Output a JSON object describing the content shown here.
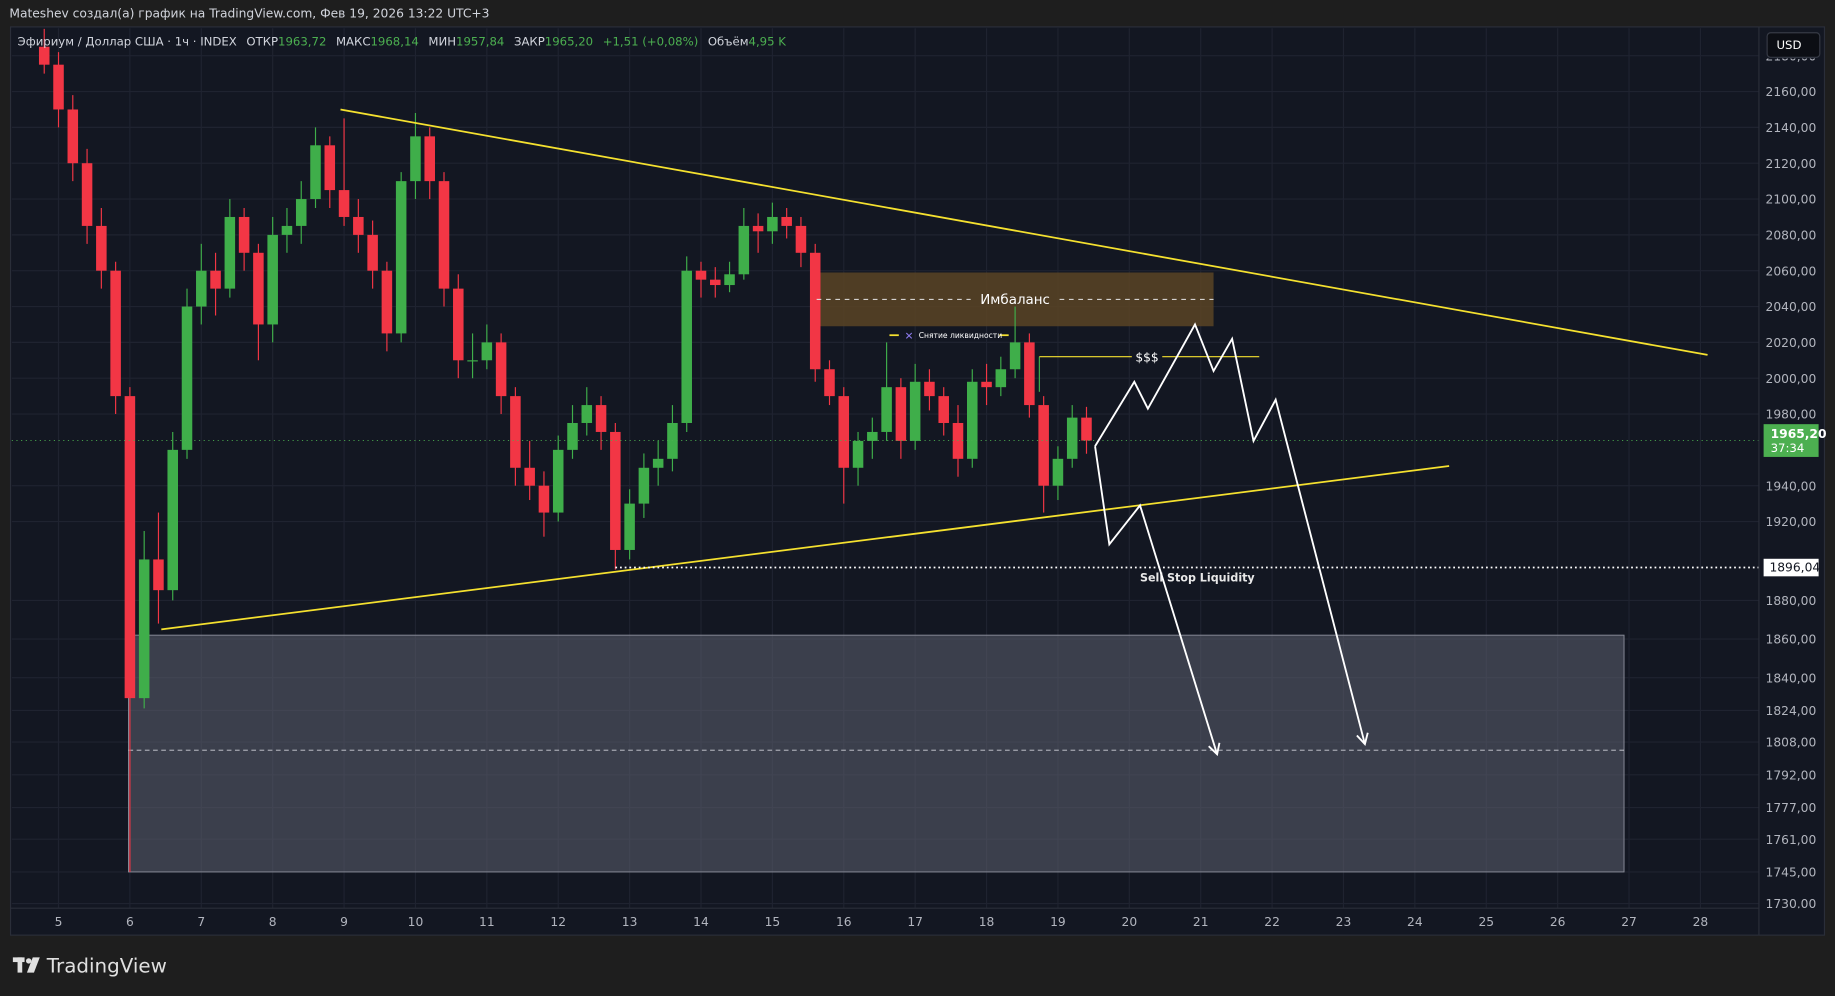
{
  "header": {
    "attribution": "Mateshev создал(а) график на TradingView.com, Фев 19, 2026 13:22 UTC+3"
  },
  "legend": {
    "symbol": "Эфириум / Доллар США · 1ч · INDEX",
    "open_label": "ОТКР",
    "open": "1963,72",
    "high_label": "МАКС",
    "high": "1968,14",
    "low_label": "МИН",
    "low": "1957,84",
    "close_label": "ЗАКР",
    "close": "1965,20",
    "change": "+1,51 (+0,08%)",
    "volume_label": "Объём",
    "volume": "4,95 K"
  },
  "currency_button": "USD",
  "price_tags": {
    "last_price": "1965,20",
    "countdown": "37:34",
    "marked_level": "1896,04"
  },
  "colors": {
    "up": "#3fae4a",
    "down": "#f23645",
    "trendline": "#f5e12f",
    "imbalance": "#5a4424",
    "zone": "#5d6070",
    "last_price": "#4caf50",
    "projection": "#ffffff"
  },
  "annotations": {
    "imbalance": "Имбаланс",
    "liquidity_grab": "Снятие ликвидности",
    "dollars": "$$$",
    "sell_stop": "Sell Stop Liquidity"
  },
  "footer": {
    "logo": "TradingView"
  },
  "chart_data": {
    "type": "candlestick",
    "title": "",
    "x_ticks": [
      5,
      6,
      7,
      8,
      9,
      10,
      11,
      12,
      13,
      14,
      15,
      16,
      17,
      18,
      19,
      20,
      21,
      22,
      23,
      24,
      25,
      26,
      27,
      28
    ],
    "y_ticks": [
      2180,
      2160,
      2140,
      2120,
      2100,
      2080,
      2060,
      2040,
      2020,
      2000,
      1980,
      1940,
      1920,
      1880,
      1860,
      1840,
      1824,
      1808,
      1792,
      1777,
      1761,
      1745,
      1730
    ],
    "candles_columns": [
      "day",
      "open",
      "high",
      "low",
      "close"
    ],
    "candles": [
      [
        4.8,
        2185,
        2195,
        2170,
        2175
      ],
      [
        5.0,
        2175,
        2182,
        2140,
        2150
      ],
      [
        5.2,
        2150,
        2158,
        2110,
        2120
      ],
      [
        5.4,
        2120,
        2128,
        2075,
        2085
      ],
      [
        5.6,
        2085,
        2095,
        2050,
        2060
      ],
      [
        5.8,
        2060,
        2065,
        1980,
        1990
      ],
      [
        6.0,
        1990,
        1995,
        1745,
        1830
      ],
      [
        6.2,
        1830,
        1915,
        1825,
        1900
      ],
      [
        6.4,
        1900,
        1925,
        1868,
        1885
      ],
      [
        6.6,
        1885,
        1970,
        1880,
        1960
      ],
      [
        6.8,
        1960,
        2050,
        1955,
        2040
      ],
      [
        7.0,
        2040,
        2075,
        2030,
        2060
      ],
      [
        7.2,
        2060,
        2070,
        2035,
        2050
      ],
      [
        7.4,
        2050,
        2100,
        2045,
        2090
      ],
      [
        7.6,
        2090,
        2095,
        2060,
        2070
      ],
      [
        7.8,
        2070,
        2075,
        2010,
        2030
      ],
      [
        8.0,
        2030,
        2090,
        2020,
        2080
      ],
      [
        8.2,
        2080,
        2095,
        2070,
        2085
      ],
      [
        8.4,
        2085,
        2110,
        2075,
        2100
      ],
      [
        8.6,
        2100,
        2140,
        2095,
        2130
      ],
      [
        8.8,
        2130,
        2135,
        2095,
        2105
      ],
      [
        9.0,
        2105,
        2145,
        2085,
        2090
      ],
      [
        9.2,
        2090,
        2100,
        2070,
        2080
      ],
      [
        9.4,
        2080,
        2088,
        2050,
        2060
      ],
      [
        9.6,
        2060,
        2065,
        2015,
        2025
      ],
      [
        9.8,
        2025,
        2115,
        2020,
        2110
      ],
      [
        10.0,
        2110,
        2148,
        2100,
        2135
      ],
      [
        10.2,
        2135,
        2140,
        2100,
        2110
      ],
      [
        10.4,
        2110,
        2115,
        2040,
        2050
      ],
      [
        10.6,
        2050,
        2058,
        2000,
        2010
      ],
      [
        10.8,
        2010,
        2025,
        2000,
        2010
      ],
      [
        11.0,
        2010,
        2030,
        2005,
        2020
      ],
      [
        11.2,
        2020,
        2025,
        1980,
        1990
      ],
      [
        11.4,
        1990,
        1995,
        1940,
        1950
      ],
      [
        11.6,
        1950,
        1965,
        1932,
        1940
      ],
      [
        11.8,
        1940,
        1948,
        1912,
        1925
      ],
      [
        12.0,
        1925,
        1968,
        1920,
        1960
      ],
      [
        12.2,
        1960,
        1985,
        1955,
        1975
      ],
      [
        12.4,
        1975,
        1995,
        1968,
        1985
      ],
      [
        12.6,
        1985,
        1990,
        1960,
        1970
      ],
      [
        12.8,
        1970,
        1975,
        1895,
        1905
      ],
      [
        13.0,
        1905,
        1938,
        1900,
        1930
      ],
      [
        13.2,
        1930,
        1958,
        1922,
        1950
      ],
      [
        13.4,
        1950,
        1965,
        1940,
        1955
      ],
      [
        13.6,
        1955,
        1985,
        1948,
        1975
      ],
      [
        13.8,
        1975,
        2068,
        1970,
        2060
      ],
      [
        14.0,
        2060,
        2065,
        2045,
        2055
      ],
      [
        14.2,
        2055,
        2062,
        2045,
        2052
      ],
      [
        14.4,
        2052,
        2065,
        2048,
        2058
      ],
      [
        14.6,
        2058,
        2095,
        2055,
        2085
      ],
      [
        14.8,
        2085,
        2092,
        2070,
        2082
      ],
      [
        15.0,
        2082,
        2098,
        2075,
        2090
      ],
      [
        15.2,
        2090,
        2095,
        2078,
        2085
      ],
      [
        15.4,
        2085,
        2090,
        2062,
        2070
      ],
      [
        15.6,
        2070,
        2075,
        1998,
        2005
      ],
      [
        15.8,
        2005,
        2010,
        1985,
        1990
      ],
      [
        16.0,
        1990,
        1995,
        1930,
        1950
      ],
      [
        16.2,
        1950,
        1970,
        1940,
        1965
      ],
      [
        16.4,
        1965,
        1978,
        1955,
        1970
      ],
      [
        16.6,
        1970,
        2020,
        1965,
        1995
      ],
      [
        16.8,
        1995,
        2000,
        1955,
        1965
      ],
      [
        17.0,
        1965,
        2008,
        1960,
        1998
      ],
      [
        17.2,
        1998,
        2005,
        1982,
        1990
      ],
      [
        17.4,
        1990,
        1995,
        1968,
        1975
      ],
      [
        17.6,
        1975,
        1985,
        1945,
        1955
      ],
      [
        17.8,
        1955,
        2005,
        1950,
        1998
      ],
      [
        18.0,
        1998,
        2008,
        1985,
        1995
      ],
      [
        18.2,
        1995,
        2012,
        1990,
        2005
      ],
      [
        18.4,
        2005,
        2040,
        2000,
        2020
      ],
      [
        18.6,
        2020,
        2025,
        1978,
        1985
      ],
      [
        18.8,
        1985,
        1990,
        1925,
        1940
      ],
      [
        19.0,
        1940,
        1962,
        1932,
        1955
      ],
      [
        19.2,
        1955,
        1985,
        1950,
        1978
      ],
      [
        19.4,
        1978,
        1984,
        1957.84,
        1965.2
      ]
    ],
    "last_price": 1965.2,
    "drawings": {
      "resistance_line": [
        [
          8.95,
          2150
        ],
        [
          28.1,
          2013
        ]
      ],
      "support_line": [
        [
          6.44,
          1865
        ],
        [
          24.48,
          1951
        ]
      ],
      "imbalance_zone": {
        "from_day": 15.62,
        "to_day": 21.18,
        "top": 2059,
        "bottom": 2029,
        "mid": 2044
      },
      "liquidity_grab_level": {
        "from_day": 16.64,
        "to_day": 18.31,
        "price": 2024
      },
      "dollars_level": {
        "from_day": 18.74,
        "to_day": 21.82,
        "price": 2012
      },
      "sell_stop_level": 1896.04,
      "target_zone": {
        "from_day": 5.98,
        "to_day": 26.93,
        "top": 1862,
        "bottom": 1745,
        "mid": 1804
      },
      "projection_a": [
        [
          19.52,
          1962
        ],
        [
          20.07,
          1998
        ],
        [
          20.26,
          1983
        ],
        [
          20.92,
          2030
        ],
        [
          21.18,
          2004
        ],
        [
          21.44,
          2022
        ],
        [
          21.74,
          1965
        ],
        [
          22.05,
          1988
        ],
        [
          23.3,
          1807
        ]
      ],
      "projection_b": [
        [
          19.52,
          1962
        ],
        [
          19.72,
          1908
        ],
        [
          20.15,
          1929
        ],
        [
          21.23,
          1802
        ]
      ]
    }
  }
}
